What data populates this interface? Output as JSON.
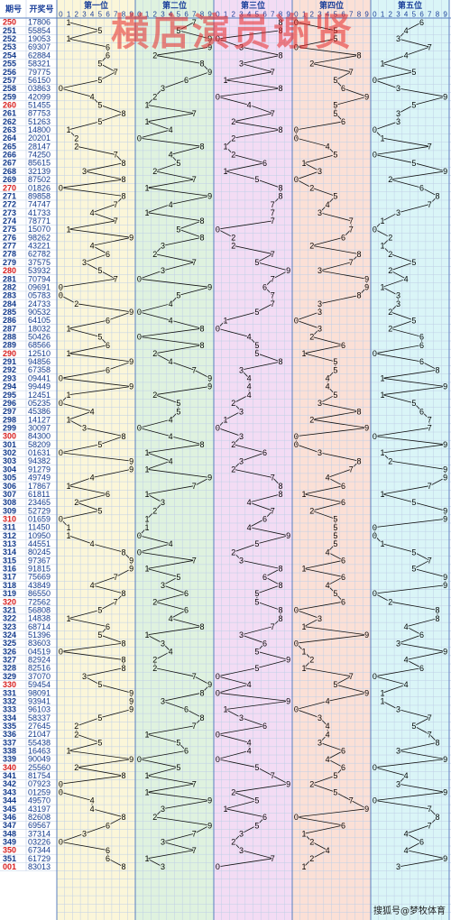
{
  "watermark": "横店演员谢贤",
  "credit": "搜狐号@梦牧体育",
  "chart_data": {
    "type": "table",
    "headers": {
      "period": "期号",
      "number": "开奖号"
    },
    "positions": [
      "第一位",
      "第二位",
      "第三位",
      "第四位",
      "第五位"
    ],
    "digits": [
      "0",
      "1",
      "2",
      "3",
      "4",
      "5",
      "6",
      "7",
      "8",
      "9"
    ],
    "colors": {
      "pos": [
        "#fbf6d9",
        "#dff2df",
        "#f3dcf4",
        "#fbe0d6",
        "#daf5f7"
      ],
      "grid": "#bfcfe6",
      "line": "#111111",
      "period_red": "#d81e1e",
      "period_blue": "#123a8c",
      "number": "#123a8c",
      "header": "#1a3f9a"
    },
    "rows": [
      {
        "p": "250",
        "n": "17806"
      },
      {
        "p": "251",
        "n": "55854"
      },
      {
        "p": "252",
        "n": "19053"
      },
      {
        "p": "253",
        "n": "69307"
      },
      {
        "p": "254",
        "n": "62884"
      },
      {
        "p": "255",
        "n": "58321"
      },
      {
        "p": "256",
        "n": "79775"
      },
      {
        "p": "257",
        "n": "56150"
      },
      {
        "p": "258",
        "n": "03863"
      },
      {
        "p": "259",
        "n": "42099"
      },
      {
        "p": "260",
        "n": "51455"
      },
      {
        "p": "261",
        "n": "87753"
      },
      {
        "p": "262",
        "n": "51263"
      },
      {
        "p": "263",
        "n": "14800"
      },
      {
        "p": "264",
        "n": "20201"
      },
      {
        "p": "265",
        "n": "28147"
      },
      {
        "p": "266",
        "n": "74250"
      },
      {
        "p": "267",
        "n": "85615"
      },
      {
        "p": "268",
        "n": "32139"
      },
      {
        "p": "269",
        "n": "87502"
      },
      {
        "p": "270",
        "n": "01826"
      },
      {
        "p": "271",
        "n": "89858"
      },
      {
        "p": "272",
        "n": "74747"
      },
      {
        "p": "273",
        "n": "41733"
      },
      {
        "p": "274",
        "n": "78771"
      },
      {
        "p": "275",
        "n": "15070"
      },
      {
        "p": "276",
        "n": "98262"
      },
      {
        "p": "277",
        "n": "43221"
      },
      {
        "p": "278",
        "n": "62782"
      },
      {
        "p": "279",
        "n": "37575"
      },
      {
        "p": "280",
        "n": "53932"
      },
      {
        "p": "281",
        "n": "70794"
      },
      {
        "p": "282",
        "n": "09691"
      },
      {
        "p": "283",
        "n": "05783"
      },
      {
        "p": "284",
        "n": "24733"
      },
      {
        "p": "285",
        "n": "90532"
      },
      {
        "p": "286",
        "n": "64105"
      },
      {
        "p": "287",
        "n": "18032"
      },
      {
        "p": "288",
        "n": "50426"
      },
      {
        "p": "289",
        "n": "68566"
      },
      {
        "p": "290",
        "n": "12510"
      },
      {
        "p": "291",
        "n": "94856"
      },
      {
        "p": "292",
        "n": "67358"
      },
      {
        "p": "293",
        "n": "09441"
      },
      {
        "p": "294",
        "n": "99449"
      },
      {
        "p": "295",
        "n": "12451"
      },
      {
        "p": "296",
        "n": "05235"
      },
      {
        "p": "297",
        "n": "45386"
      },
      {
        "p": "298",
        "n": "14127"
      },
      {
        "p": "299",
        "n": "30097"
      },
      {
        "p": "300",
        "n": "84300"
      },
      {
        "p": "301",
        "n": "58209"
      },
      {
        "p": "302",
        "n": "01631"
      },
      {
        "p": "303",
        "n": "94382"
      },
      {
        "p": "304",
        "n": "91279"
      },
      {
        "p": "305",
        "n": "49749"
      },
      {
        "p": "306",
        "n": "17867"
      },
      {
        "p": "307",
        "n": "61811"
      },
      {
        "p": "308",
        "n": "23465"
      },
      {
        "p": "309",
        "n": "52729"
      },
      {
        "p": "310",
        "n": "01659"
      },
      {
        "p": "311",
        "n": "11450"
      },
      {
        "p": "312",
        "n": "10950"
      },
      {
        "p": "313",
        "n": "44551"
      },
      {
        "p": "314",
        "n": "80245"
      },
      {
        "p": "315",
        "n": "97367"
      },
      {
        "p": "316",
        "n": "91815"
      },
      {
        "p": "317",
        "n": "75669"
      },
      {
        "p": "318",
        "n": "43849"
      },
      {
        "p": "319",
        "n": "86550"
      },
      {
        "p": "320",
        "n": "72562"
      },
      {
        "p": "321",
        "n": "56808"
      },
      {
        "p": "322",
        "n": "14838"
      },
      {
        "p": "323",
        "n": "68714"
      },
      {
        "p": "324",
        "n": "51396"
      },
      {
        "p": "325",
        "n": "83603"
      },
      {
        "p": "326",
        "n": "04519"
      },
      {
        "p": "327",
        "n": "82924"
      },
      {
        "p": "328",
        "n": "82516"
      },
      {
        "p": "329",
        "n": "37070"
      },
      {
        "p": "330",
        "n": "59454"
      },
      {
        "p": "331",
        "n": "98091"
      },
      {
        "p": "332",
        "n": "93941"
      },
      {
        "p": "333",
        "n": "96103"
      },
      {
        "p": "334",
        "n": "58337"
      },
      {
        "p": "335",
        "n": "27645"
      },
      {
        "p": "336",
        "n": "21047"
      },
      {
        "p": "337",
        "n": "55438"
      },
      {
        "p": "338",
        "n": "16463"
      },
      {
        "p": "339",
        "n": "90049"
      },
      {
        "p": "340",
        "n": "25560"
      },
      {
        "p": "341",
        "n": "81754"
      },
      {
        "p": "342",
        "n": "07923"
      },
      {
        "p": "343",
        "n": "01259"
      },
      {
        "p": "344",
        "n": "49570"
      },
      {
        "p": "345",
        "n": "43197"
      },
      {
        "p": "346",
        "n": "82608"
      },
      {
        "p": "347",
        "n": "69567"
      },
      {
        "p": "348",
        "n": "37314"
      },
      {
        "p": "349",
        "n": "03226"
      },
      {
        "p": "350",
        "n": "67344"
      },
      {
        "p": "351",
        "n": "61729"
      },
      {
        "p": "001",
        "n": "83013"
      }
    ]
  }
}
